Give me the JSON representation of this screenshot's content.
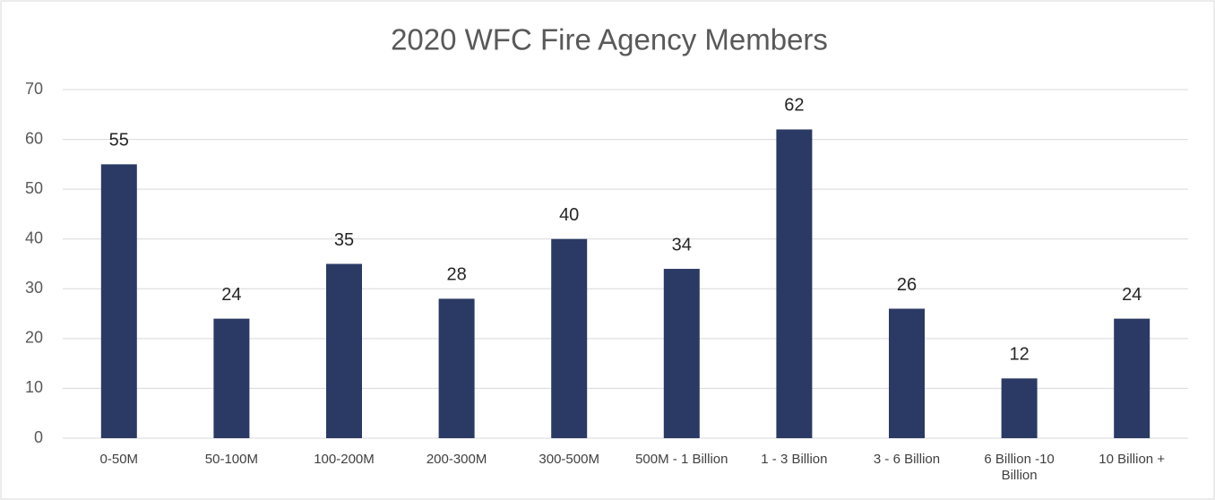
{
  "chart_data": {
    "type": "bar",
    "title": "2020 WFC Fire Agency Members",
    "categories": [
      "0-50M",
      "50-100M",
      "100-200M",
      "200-300M",
      "300-500M",
      "500M - 1 Billion",
      "1 - 3 Billion",
      "3 - 6 Billion",
      "6 Billion -10 Billion",
      "10 Billion +"
    ],
    "values": [
      55,
      24,
      35,
      28,
      40,
      34,
      62,
      26,
      12,
      24
    ],
    "color": "#2b3a64",
    "ylim": [
      0,
      70
    ],
    "yticks": [
      0,
      10,
      20,
      30,
      40,
      50,
      60,
      70
    ],
    "grid": true
  }
}
